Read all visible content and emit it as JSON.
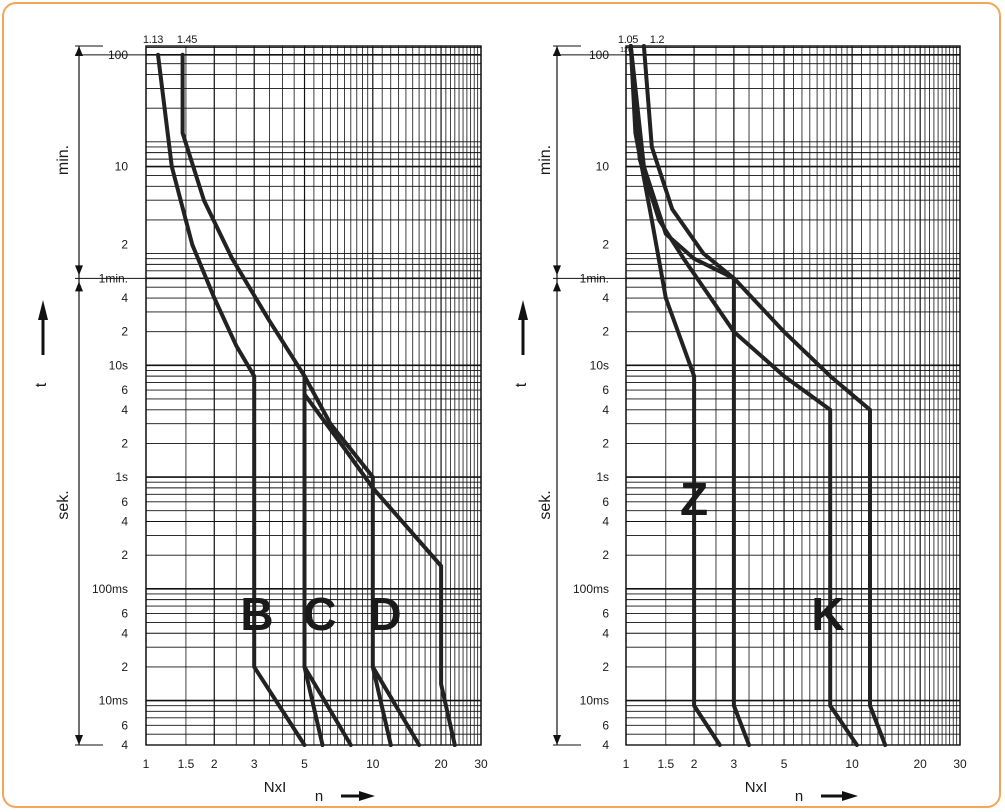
{
  "charts": [
    {
      "id": "left",
      "curve_top_labels": [
        "1.13",
        "1.45"
      ],
      "small_top_label": "",
      "y_ticks": [
        "100",
        "10",
        "2",
        "1min.",
        "4",
        "2",
        "10s",
        "6",
        "4",
        "2",
        "1s",
        "6",
        "4",
        "2",
        "100ms",
        "6",
        "4",
        "2",
        "10ms",
        "6",
        "4"
      ],
      "x_ticks": [
        "1",
        "1.5",
        "2",
        "3",
        "5",
        "10",
        "20",
        "30"
      ],
      "x_axis_label": "NxI",
      "n_label": "n",
      "t_label": "t",
      "min_label": "min.",
      "sek_label": "sek.",
      "curve_letters": [
        "B",
        "C",
        "D"
      ]
    },
    {
      "id": "right",
      "curve_top_labels": [
        "1.05",
        "1.2"
      ],
      "small_top_label": "120",
      "y_ticks": [
        "100",
        "10",
        "2",
        "1min.",
        "4",
        "2",
        "10s",
        "6",
        "4",
        "2",
        "1s",
        "6",
        "4",
        "2",
        "100ms",
        "6",
        "4",
        "2",
        "10ms",
        "6",
        "4"
      ],
      "x_ticks": [
        "1",
        "1.5",
        "2",
        "3",
        "5",
        "10",
        "20",
        "30"
      ],
      "x_axis_label": "NxI",
      "n_label": "n",
      "t_label": "t",
      "min_label": "min.",
      "sek_label": "sek.",
      "curve_letters": [
        "Z",
        "K"
      ]
    }
  ],
  "chart_data": [
    {
      "type": "line",
      "x_scale": "log",
      "y_scale": "log",
      "xlim": [
        1,
        30
      ],
      "y_unit": "s",
      "series": [
        {
          "name": "B",
          "points": [
            [
              1.13,
              6000
            ],
            [
              1.3,
              600
            ],
            [
              1.6,
              120
            ],
            [
              2,
              40
            ],
            [
              2.5,
              15
            ],
            [
              3,
              8
            ],
            [
              3,
              0.02
            ],
            [
              5,
              0.004
            ]
          ]
        },
        {
          "name": "B",
          "points": [
            [
              1.45,
              6000
            ],
            [
              1.45,
              1200
            ],
            [
              1.8,
              300
            ],
            [
              2.4,
              90
            ],
            [
              3.5,
              25
            ],
            [
              5,
              8
            ],
            [
              5,
              0.02
            ],
            [
              6,
              0.004
            ]
          ]
        },
        {
          "name": "C",
          "points": [
            [
              5,
              8
            ],
            [
              6.5,
              3
            ],
            [
              10,
              1
            ],
            [
              10,
              0.02
            ],
            [
              12,
              0.004
            ]
          ]
        },
        {
          "name": "C",
          "points": [
            [
              5,
              0.02
            ],
            [
              8,
              0.004
            ]
          ]
        },
        {
          "name": "D",
          "points": [
            [
              5,
              5.5
            ],
            [
              7.5,
              1.8
            ],
            [
              10,
              0.8
            ],
            [
              20,
              0.16
            ],
            [
              20,
              0.014
            ],
            [
              23,
              0.004
            ]
          ]
        },
        {
          "name": "D",
          "points": [
            [
              10,
              0.02
            ],
            [
              16,
              0.004
            ]
          ]
        }
      ],
      "curve_labels": [
        "B",
        "C",
        "D"
      ]
    },
    {
      "type": "line",
      "x_scale": "log",
      "y_scale": "log",
      "xlim": [
        1,
        30
      ],
      "y_unit": "s",
      "series": [
        {
          "name": "Z",
          "points": [
            [
              1.05,
              7200
            ],
            [
              1.1,
              1200
            ],
            [
              1.3,
              200
            ],
            [
              1.5,
              40
            ],
            [
              2,
              8
            ],
            [
              2,
              0.009
            ],
            [
              2.6,
              0.004
            ]
          ]
        },
        {
          "name": "Z",
          "points": [
            [
              1.05,
              7200
            ],
            [
              1.2,
              600
            ],
            [
              1.5,
              150
            ],
            [
              2,
              90
            ],
            [
              3,
              60
            ],
            [
              3,
              0.009
            ],
            [
              3.5,
              0.004
            ]
          ]
        },
        {
          "name": "K",
          "points": [
            [
              1.05,
              7200
            ],
            [
              1.15,
              700
            ],
            [
              1.4,
              200
            ],
            [
              1.8,
              90
            ],
            [
              3,
              20
            ],
            [
              5,
              8
            ],
            [
              8,
              4
            ],
            [
              8,
              0.009
            ],
            [
              10.5,
              0.004
            ]
          ]
        },
        {
          "name": "K",
          "points": [
            [
              1.2,
              7200
            ],
            [
              1.3,
              900
            ],
            [
              1.6,
              250
            ],
            [
              2.2,
              100
            ],
            [
              3,
              60
            ],
            [
              5,
              20
            ],
            [
              8,
              8
            ],
            [
              12,
              4
            ],
            [
              12,
              0.009
            ],
            [
              14,
              0.004
            ]
          ]
        }
      ],
      "curve_labels": [
        "Z",
        "K"
      ]
    }
  ]
}
